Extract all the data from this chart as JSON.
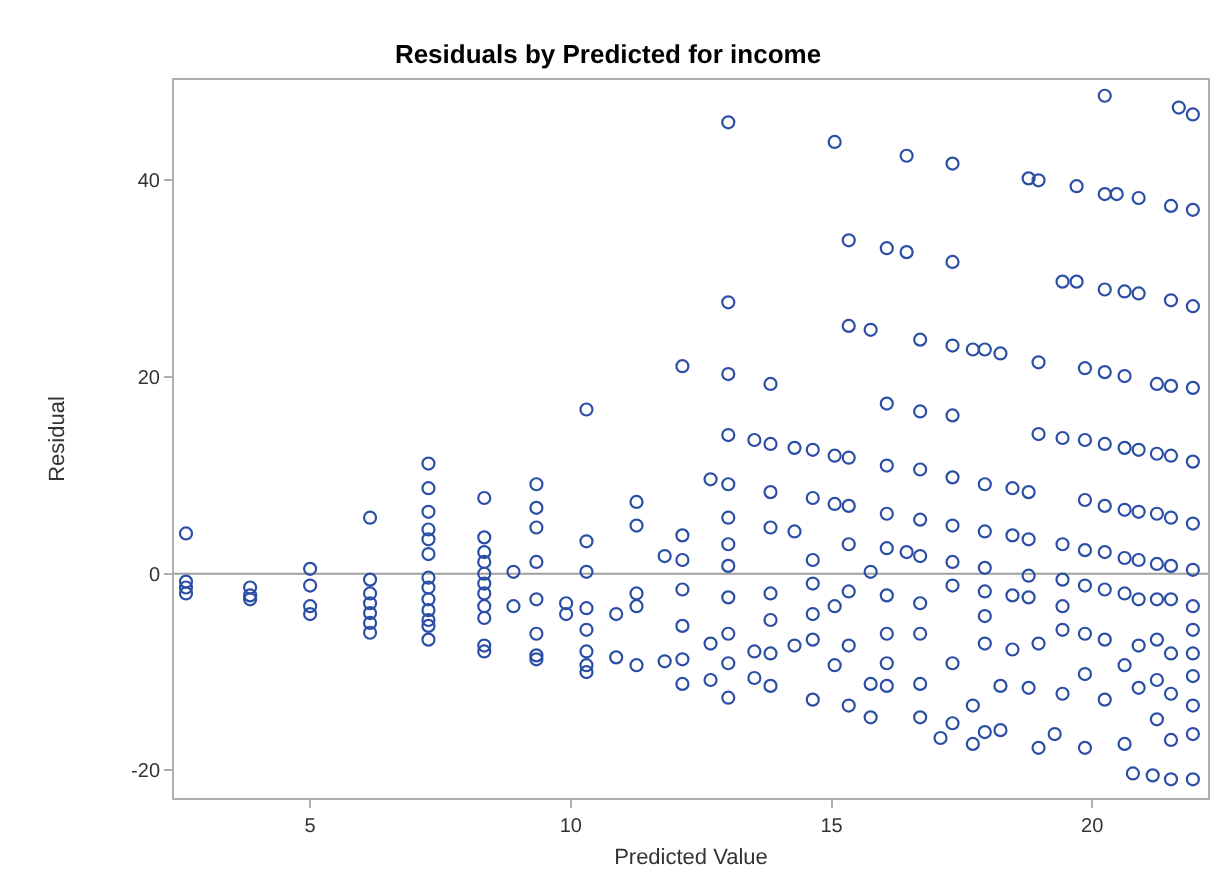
{
  "chart_data": {
    "type": "scatter",
    "title": "Residuals by Predicted for income",
    "xlabel": "Predicted Value",
    "ylabel": "Residual",
    "xlim": [
      2.39,
      22.22
    ],
    "ylim": [
      -22.8,
      50.2
    ],
    "xticks": [
      5,
      10,
      15,
      20
    ],
    "yticks": [
      -20,
      0,
      20,
      40
    ],
    "grid": false,
    "marker": "circle",
    "ref_lines": [
      {
        "axis": "y",
        "value": 0,
        "color": "#a0a0a0"
      }
    ],
    "series": [
      {
        "color": "#2a4ea6",
        "x": [
          2.62,
          2.62,
          2.62,
          2.62,
          3.85,
          3.85,
          3.85,
          5.0,
          5.0,
          5.0,
          5.0,
          6.15,
          6.15,
          6.15,
          6.15,
          6.15,
          6.15,
          6.15,
          7.27,
          7.27,
          7.27,
          7.27,
          7.27,
          7.27,
          7.27,
          7.27,
          7.27,
          7.27,
          7.27,
          7.27,
          7.27,
          8.34,
          8.34,
          8.34,
          8.34,
          8.34,
          8.34,
          8.34,
          8.34,
          8.34,
          8.34,
          8.34,
          8.9,
          8.9,
          9.34,
          9.34,
          9.34,
          9.34,
          9.34,
          9.34,
          9.34,
          9.34,
          9.91,
          9.91,
          10.3,
          10.3,
          10.3,
          10.3,
          10.3,
          10.3,
          10.3,
          10.3,
          10.87,
          10.87,
          11.26,
          11.26,
          11.26,
          11.26,
          11.26,
          11.8,
          11.8,
          12.14,
          12.14,
          12.14,
          12.14,
          12.14,
          12.14,
          12.14,
          12.68,
          12.68,
          12.68,
          13.02,
          13.02,
          13.02,
          13.02,
          13.02,
          13.02,
          13.02,
          13.02,
          13.02,
          13.02,
          13.02,
          13.02,
          13.52,
          13.52,
          13.52,
          13.83,
          13.83,
          13.83,
          13.83,
          13.83,
          13.83,
          13.83,
          13.83,
          14.29,
          14.29,
          14.29,
          14.64,
          14.64,
          14.64,
          14.64,
          14.64,
          14.64,
          14.64,
          15.06,
          15.06,
          15.06,
          15.06,
          15.06,
          15.33,
          15.33,
          15.33,
          15.33,
          15.33,
          15.33,
          15.33,
          15.33,
          15.75,
          15.75,
          15.75,
          15.75,
          16.06,
          16.06,
          16.06,
          16.06,
          16.06,
          16.06,
          16.06,
          16.06,
          16.06,
          16.44,
          16.44,
          16.44,
          16.7,
          16.7,
          16.7,
          16.7,
          16.7,
          16.7,
          16.7,
          16.7,
          16.7,
          17.32,
          17.32,
          17.32,
          17.32,
          17.32,
          17.32,
          17.32,
          17.32,
          17.32,
          17.32,
          17.09,
          17.71,
          17.71,
          17.71,
          17.94,
          17.94,
          17.94,
          17.94,
          17.94,
          17.94,
          17.94,
          17.94,
          18.24,
          18.24,
          18.24,
          18.47,
          18.47,
          18.47,
          18.47,
          18.78,
          18.78,
          18.78,
          18.78,
          18.78,
          18.78,
          18.97,
          18.97,
          18.97,
          18.97,
          18.97,
          19.43,
          19.43,
          19.43,
          19.43,
          19.43,
          19.43,
          19.43,
          19.28,
          19.7,
          19.7,
          19.86,
          19.86,
          19.86,
          19.86,
          19.86,
          19.86,
          19.86,
          19.86,
          20.24,
          20.24,
          20.24,
          20.24,
          20.24,
          20.24,
          20.24,
          20.24,
          20.24,
          20.24,
          20.47,
          20.62,
          20.62,
          20.62,
          20.62,
          20.62,
          20.62,
          20.62,
          20.62,
          20.89,
          20.89,
          20.89,
          20.89,
          20.89,
          20.89,
          20.89,
          20.89,
          20.78,
          21.24,
          21.24,
          21.24,
          21.24,
          21.24,
          21.24,
          21.24,
          21.24,
          21.16,
          21.51,
          21.51,
          21.51,
          21.51,
          21.51,
          21.51,
          21.51,
          21.51,
          21.51,
          21.51,
          21.51,
          21.66,
          21.93,
          21.93,
          21.93,
          21.93,
          21.93,
          21.93,
          21.93,
          21.93,
          21.93,
          21.93,
          21.93,
          21.93,
          21.93,
          21.93
        ],
        "values": [
          4.1,
          -0.8,
          -1.4,
          -2.0,
          -1.4,
          -2.2,
          -2.6,
          0.5,
          -1.2,
          -3.3,
          -4.1,
          5.7,
          -0.6,
          -2.0,
          -3.0,
          -4.0,
          -5.0,
          -6.0,
          11.2,
          8.7,
          6.3,
          4.5,
          3.5,
          2.0,
          -0.4,
          -1.4,
          -2.6,
          -3.7,
          -4.7,
          -5.3,
          -6.7,
          7.7,
          3.7,
          2.2,
          1.2,
          0,
          -1.0,
          -2.0,
          -3.3,
          -4.5,
          -7.3,
          -7.9,
          0.2,
          -3.3,
          9.1,
          6.7,
          4.7,
          1.2,
          -2.6,
          -6.1,
          -8.3,
          -8.7,
          -3.0,
          -4.1,
          16.7,
          3.3,
          0.2,
          -3.5,
          -5.7,
          -7.9,
          -9.3,
          -10.0,
          -4.1,
          -8.5,
          7.3,
          4.9,
          -2.0,
          -3.3,
          -9.3,
          1.8,
          -8.9,
          21.1,
          3.9,
          1.4,
          -1.6,
          -5.3,
          -8.7,
          -11.2,
          9.6,
          -7.1,
          -10.8,
          45.9,
          27.6,
          20.3,
          14.1,
          9.1,
          5.7,
          3.0,
          0.8,
          -2.4,
          -6.1,
          -9.1,
          -12.6,
          13.6,
          -7.9,
          -10.6,
          19.3,
          13.2,
          8.3,
          4.7,
          -2.0,
          -4.7,
          -8.1,
          -11.4,
          12.8,
          4.3,
          -7.3,
          12.6,
          7.7,
          1.4,
          -1.0,
          -4.1,
          -6.7,
          -12.8,
          43.9,
          12.0,
          7.1,
          -3.3,
          -9.3,
          33.9,
          25.2,
          11.8,
          6.9,
          3.0,
          -1.8,
          -7.3,
          -13.4,
          24.8,
          0.2,
          -11.2,
          -14.6,
          33.1,
          17.3,
          11.0,
          6.1,
          2.6,
          -2.2,
          -6.1,
          -9.1,
          -11.4,
          42.5,
          32.7,
          2.2,
          23.8,
          16.5,
          10.6,
          5.5,
          1.8,
          -3.0,
          -6.1,
          -11.2,
          -14.6,
          41.7,
          31.7,
          23.2,
          16.1,
          9.8,
          4.9,
          1.2,
          -1.2,
          -9.1,
          -15.2,
          -16.7,
          22.8,
          -13.4,
          -17.3,
          22.8,
          9.1,
          4.3,
          0.6,
          -1.8,
          -4.3,
          -7.1,
          -16.1,
          22.4,
          -11.4,
          -15.9,
          8.7,
          3.9,
          -2.2,
          -7.7,
          -0.2,
          8.3,
          3.5,
          -2.4,
          -11.6,
          40.2,
          21.5,
          14.2,
          -7.1,
          -17.7,
          40.0,
          29.7,
          13.8,
          3.0,
          -0.6,
          -3.3,
          -5.7,
          -12.2,
          -16.3,
          39.4,
          29.7,
          20.9,
          13.6,
          7.5,
          2.4,
          -1.2,
          -6.1,
          -10.2,
          -17.7,
          48.6,
          38.6,
          28.9,
          20.5,
          13.2,
          6.9,
          2.2,
          -1.6,
          -6.7,
          -12.8,
          38.6,
          28.7,
          20.1,
          12.8,
          6.5,
          1.6,
          -2.0,
          -9.3,
          -17.3,
          38.2,
          28.5,
          12.6,
          6.3,
          1.4,
          -2.6,
          -7.3,
          -11.6,
          -20.3,
          19.3,
          12.2,
          6.1,
          1.0,
          -2.6,
          -6.7,
          -10.8,
          -14.8,
          -20.5,
          37.4,
          27.8,
          19.1,
          12.0,
          5.7,
          0.8,
          -2.6,
          -8.1,
          -12.2,
          -16.9,
          -20.9,
          47.4,
          46.7,
          37.0,
          27.2,
          18.9,
          11.4,
          5.1,
          0.4,
          -3.3,
          -5.7,
          -8.1,
          -10.4,
          -13.4,
          -16.3,
          -20.9
        ]
      }
    ]
  }
}
